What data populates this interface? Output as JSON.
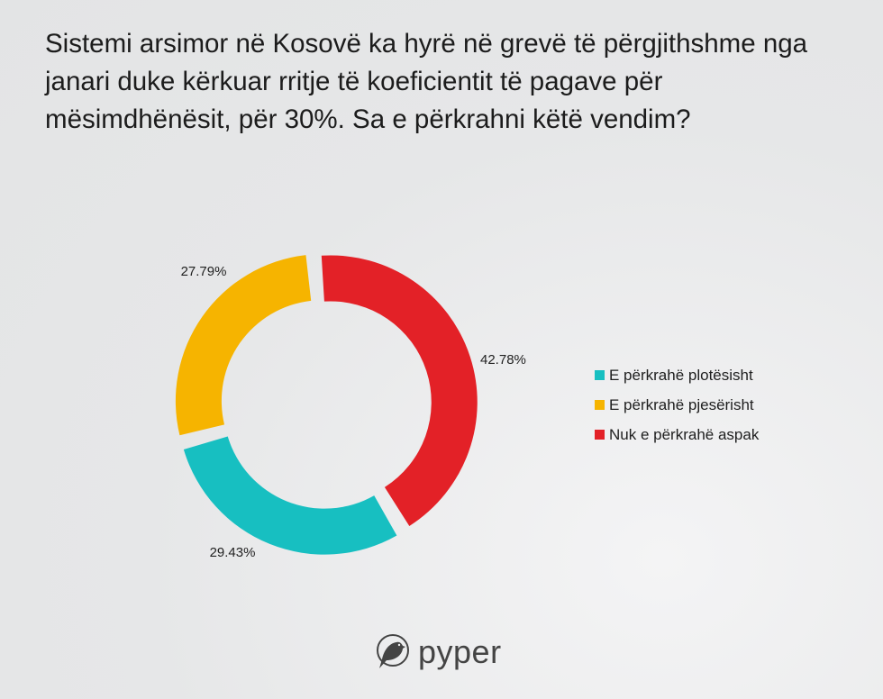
{
  "title": "Sistemi arsimor në Kosovë ka hyrë në grevë të përgjithshme nga janari duke kërkuar rritje të koeficientit të pagave për mësimdhënësit, për 30%. Sa e përkrahni këtë vendim?",
  "chart_data": {
    "type": "pie",
    "donut": true,
    "title": "Sistemi arsimor në Kosovë ka hyrë në grevë të përgjithshme nga janari duke kërkuar rritje të koeficientit të pagave për mësimdhënësit, për 30%. Sa e përkrahni këtë vendim?",
    "legend_position": "right",
    "slices": [
      {
        "name": "E përkrahë plotësisht",
        "value": 29.43,
        "label": "29.43%",
        "color": "#17bfc1"
      },
      {
        "name": "E përkrahë pjesërisht",
        "value": 27.79,
        "label": "27.79%",
        "color": "#f6b400"
      },
      {
        "name": "Nuk e përkrahë aspak",
        "value": 42.78,
        "label": "42.78%",
        "color": "#e32127"
      }
    ]
  },
  "logo": {
    "text": "pyper",
    "icon": "bird-icon"
  }
}
